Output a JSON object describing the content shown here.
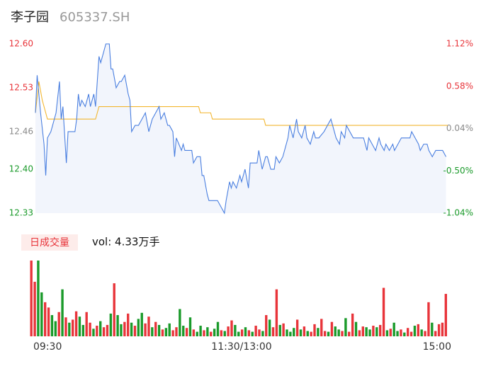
{
  "chart_data": [
    {
      "type": "line",
      "title": "李子园",
      "subtitle": "605337.SH",
      "xlim": [
        0,
        240
      ],
      "ylim": [
        12.33,
        12.6
      ],
      "yticks": [
        {
          "value": 12.6,
          "label": "12.60"
        },
        12.53,
        12.46,
        {
          "value": 12.4,
          "label": "12.40"
        },
        12.33
      ],
      "y2lim": [
        -1.04,
        1.12
      ],
      "y2ticks": [
        {
          "value": 1.12,
          "label": "1.12%"
        },
        {
          "value": 0.58,
          "label": "0.58%"
        },
        {
          "value": 0.04,
          "label": "0.04%"
        },
        {
          "value": -0.5,
          "label": "-0.50%"
        },
        {
          "value": -1.04,
          "label": "-1.04%"
        }
      ],
      "tick_colors": [
        "#e8343a",
        "#e8343a",
        "#8a8a8a",
        "#1a9a2a",
        "#1a9a2a"
      ],
      "area_color": "#f2f5fc",
      "series": [
        {
          "color": "#4a7fe0",
          "x": [
            0,
            1,
            2,
            3,
            5,
            6,
            7,
            9,
            12,
            14,
            15,
            16,
            18,
            19,
            23,
            24,
            25,
            26,
            27,
            29,
            31,
            32,
            34,
            35,
            37,
            38,
            40,
            41,
            43,
            44,
            45,
            47,
            49,
            50,
            52,
            54,
            55,
            56,
            58,
            60,
            62,
            64,
            66,
            68,
            70,
            72,
            73,
            75,
            77,
            78,
            80,
            81,
            82,
            85,
            86,
            87,
            89,
            91,
            92,
            94,
            96,
            97,
            98,
            100,
            101,
            103,
            105,
            106,
            108,
            110,
            111,
            113,
            114,
            115,
            117,
            119,
            120,
            122,
            124,
            125,
            127,
            129,
            130,
            132,
            134,
            135,
            137,
            139,
            140,
            142,
            144,
            145,
            147,
            148,
            150,
            152,
            153,
            155,
            157,
            158,
            160,
            162,
            163,
            165,
            168,
            170,
            172,
            173,
            175,
            177,
            178,
            180,
            181,
            185,
            188,
            191,
            193,
            194,
            196,
            198,
            200,
            201,
            203,
            204,
            206,
            208,
            209,
            211,
            213,
            214,
            216,
            218,
            219,
            221,
            223,
            224,
            226,
            228,
            229,
            231,
            233,
            237,
            239
          ],
          "values": [
            12.49,
            12.55,
            12.52,
            12.49,
            12.44,
            12.39,
            12.45,
            12.46,
            12.49,
            12.54,
            12.48,
            12.5,
            12.41,
            12.46,
            12.46,
            12.48,
            12.52,
            12.5,
            12.51,
            12.5,
            12.52,
            12.5,
            12.52,
            12.5,
            12.58,
            12.57,
            12.59,
            12.6,
            12.6,
            12.56,
            12.56,
            12.53,
            12.54,
            12.54,
            12.55,
            12.52,
            12.51,
            12.46,
            12.47,
            12.47,
            12.48,
            12.49,
            12.46,
            12.48,
            12.49,
            12.5,
            12.48,
            12.49,
            12.47,
            12.47,
            12.46,
            12.42,
            12.45,
            12.43,
            12.44,
            12.43,
            12.43,
            12.43,
            12.41,
            12.42,
            12.42,
            12.39,
            12.39,
            12.36,
            12.35,
            12.35,
            12.35,
            12.35,
            12.34,
            12.33,
            12.35,
            12.38,
            12.37,
            12.38,
            12.37,
            12.39,
            12.38,
            12.4,
            12.37,
            12.41,
            12.41,
            12.41,
            12.43,
            12.4,
            12.42,
            12.42,
            12.4,
            12.4,
            12.42,
            12.41,
            12.42,
            12.43,
            12.45,
            12.47,
            12.45,
            12.48,
            12.46,
            12.45,
            12.47,
            12.45,
            12.44,
            12.46,
            12.45,
            12.45,
            12.46,
            12.47,
            12.48,
            12.47,
            12.45,
            12.44,
            12.46,
            12.45,
            12.47,
            12.45,
            12.45,
            12.45,
            12.43,
            12.45,
            12.44,
            12.43,
            12.45,
            12.44,
            12.43,
            12.44,
            12.43,
            12.44,
            12.43,
            12.44,
            12.45,
            12.45,
            12.45,
            12.45,
            12.46,
            12.45,
            12.44,
            12.43,
            12.44,
            12.44,
            12.43,
            12.42,
            12.43,
            12.43,
            12.42
          ]
        },
        {
          "color": "#f2b630",
          "x": [
            0,
            2,
            4,
            7,
            35,
            37,
            95,
            96,
            102,
            103,
            133,
            134,
            240
          ],
          "values": [
            12.49,
            12.54,
            12.51,
            12.48,
            12.48,
            12.5,
            12.5,
            12.49,
            12.49,
            12.48,
            12.48,
            12.47,
            12.47
          ]
        }
      ]
    },
    {
      "type": "bar",
      "legend_label": "日成交量",
      "annotation": "vol: 4.33万手",
      "xlim": [
        0,
        240
      ],
      "ylim": [
        0,
        1000
      ],
      "xticks": [
        {
          "value": 0,
          "label": "09:30"
        },
        {
          "value": 120,
          "label": "11:30/13:00"
        },
        {
          "value": 240,
          "label": "15:00"
        }
      ],
      "up_color": "#e8343a",
      "down_color": "#1a9a2a",
      "directions": "rrggrrggrgrgrrggrrgrgrrgrggrrgrggrrgrgrggrrggrgrggrgrggrgrrggrgrgrrgrgrrgrgggrgrgrrgrrgrggrgrrgrrggrgrrgrggrgrrgrgrrgrrrr",
      "values": [
        1000,
        720,
        1000,
        580,
        450,
        380,
        280,
        200,
        320,
        620,
        250,
        180,
        220,
        330,
        260,
        150,
        320,
        180,
        100,
        140,
        200,
        120,
        150,
        300,
        700,
        280,
        160,
        190,
        300,
        180,
        140,
        230,
        310,
        170,
        260,
        120,
        190,
        150,
        90,
        110,
        170,
        80,
        120,
        360,
        140,
        110,
        250,
        90,
        60,
        140,
        80,
        120,
        60,
        100,
        190,
        80,
        70,
        130,
        210,
        150,
        60,
        90,
        120,
        80,
        60,
        140,
        90,
        70,
        280,
        220,
        120,
        620,
        150,
        170,
        90,
        60,
        110,
        220,
        90,
        130,
        70,
        60,
        160,
        110,
        230,
        70,
        60,
        190,
        130,
        90,
        70,
        240,
        60,
        300,
        190,
        80,
        130,
        120,
        90,
        140,
        120,
        150,
        640,
        80,
        100,
        180,
        70,
        90,
        50,
        110,
        60,
        140,
        160,
        90,
        70,
        450,
        180,
        70,
        160,
        180,
        560
      ]
    }
  ]
}
